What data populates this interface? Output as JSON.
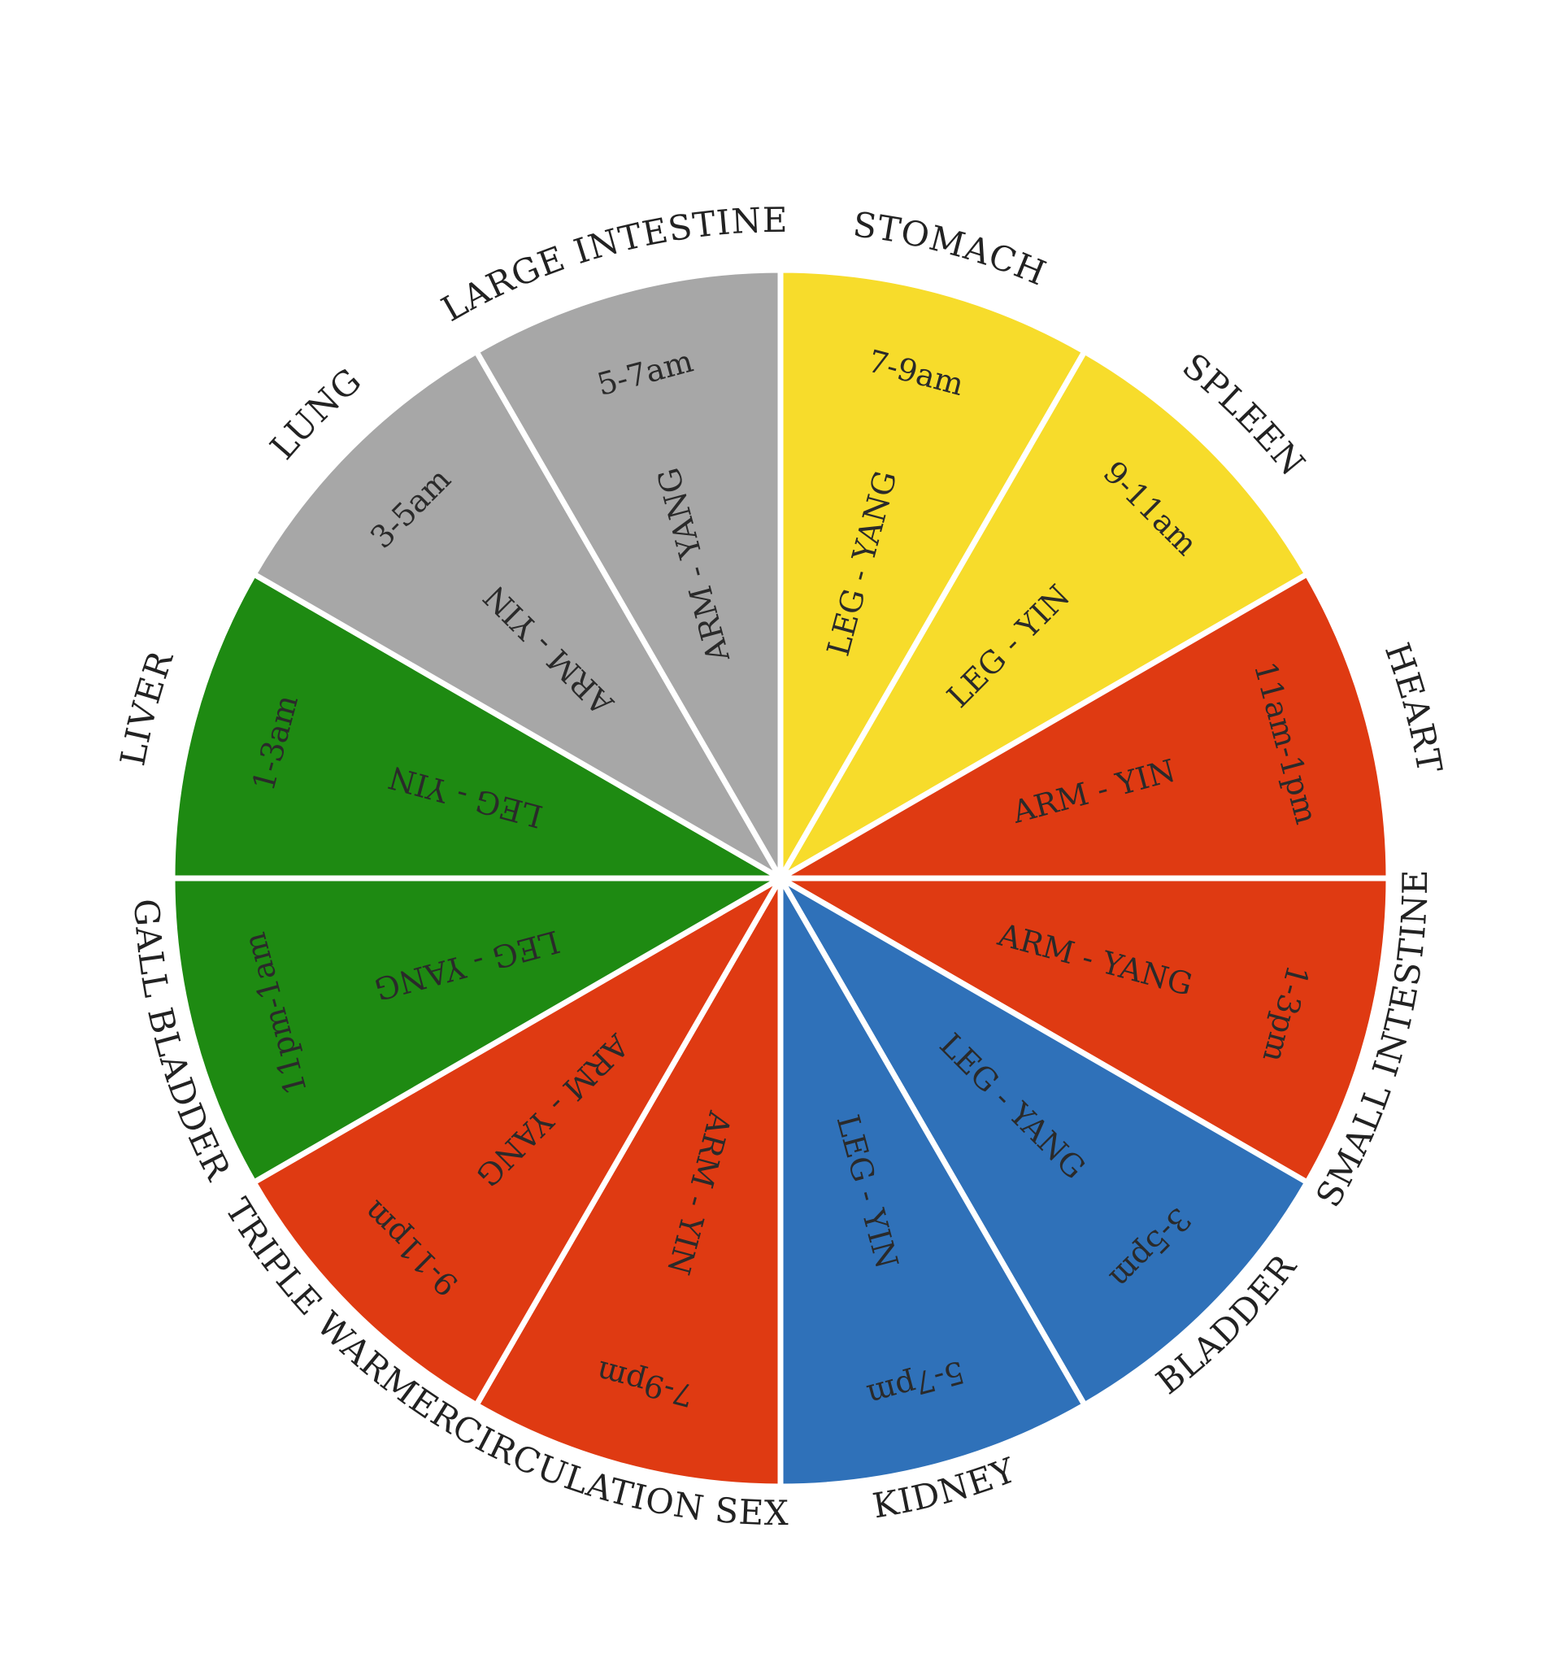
{
  "segments": [
    {
      "organ": "STOMACH",
      "time": "7-9am",
      "channel": "LEG - YANG",
      "color": "#f7dc2b"
    },
    {
      "organ": "SPLEEN",
      "time": "9-11am",
      "channel": "LEG - YIN",
      "color": "#f7dc2b"
    },
    {
      "organ": "HEART",
      "time": "11am-1pm",
      "channel": "ARM - YIN",
      "color": "#df3a12"
    },
    {
      "organ": "SMALL INTESTINE",
      "time": "1-3pm",
      "channel": "ARM - YANG",
      "color": "#df3a12"
    },
    {
      "organ": "BLADDER",
      "time": "3-5pm",
      "channel": "LEG - YANG",
      "color": "#2f71b9"
    },
    {
      "organ": "KIDNEY",
      "time": "5-7pm",
      "channel": "LEG - YIN",
      "color": "#2f71b9"
    },
    {
      "organ": "CIRCULATION SEX",
      "time": "7-9pm",
      "channel": "ARM - YIN",
      "color": "#df3a12"
    },
    {
      "organ": "TRIPLE WARMER",
      "time": "9-11pm",
      "channel": "ARM - YANG",
      "color": "#df3a12"
    },
    {
      "organ": "GALL BLADDER",
      "time": "11pm-1am",
      "channel": "LEG - YANG",
      "color": "#1e8a12"
    },
    {
      "organ": "LIVER",
      "time": "1-3am",
      "channel": "LEG - YIN",
      "color": "#1e8a12"
    },
    {
      "organ": "LUNG",
      "time": "3-5am",
      "channel": "ARM - YIN",
      "color": "#a7a7a7"
    },
    {
      "organ": "LARGE INTESTINE",
      "time": "5-7am",
      "channel": "ARM - YANG",
      "color": "#a7a7a7"
    }
  ]
}
